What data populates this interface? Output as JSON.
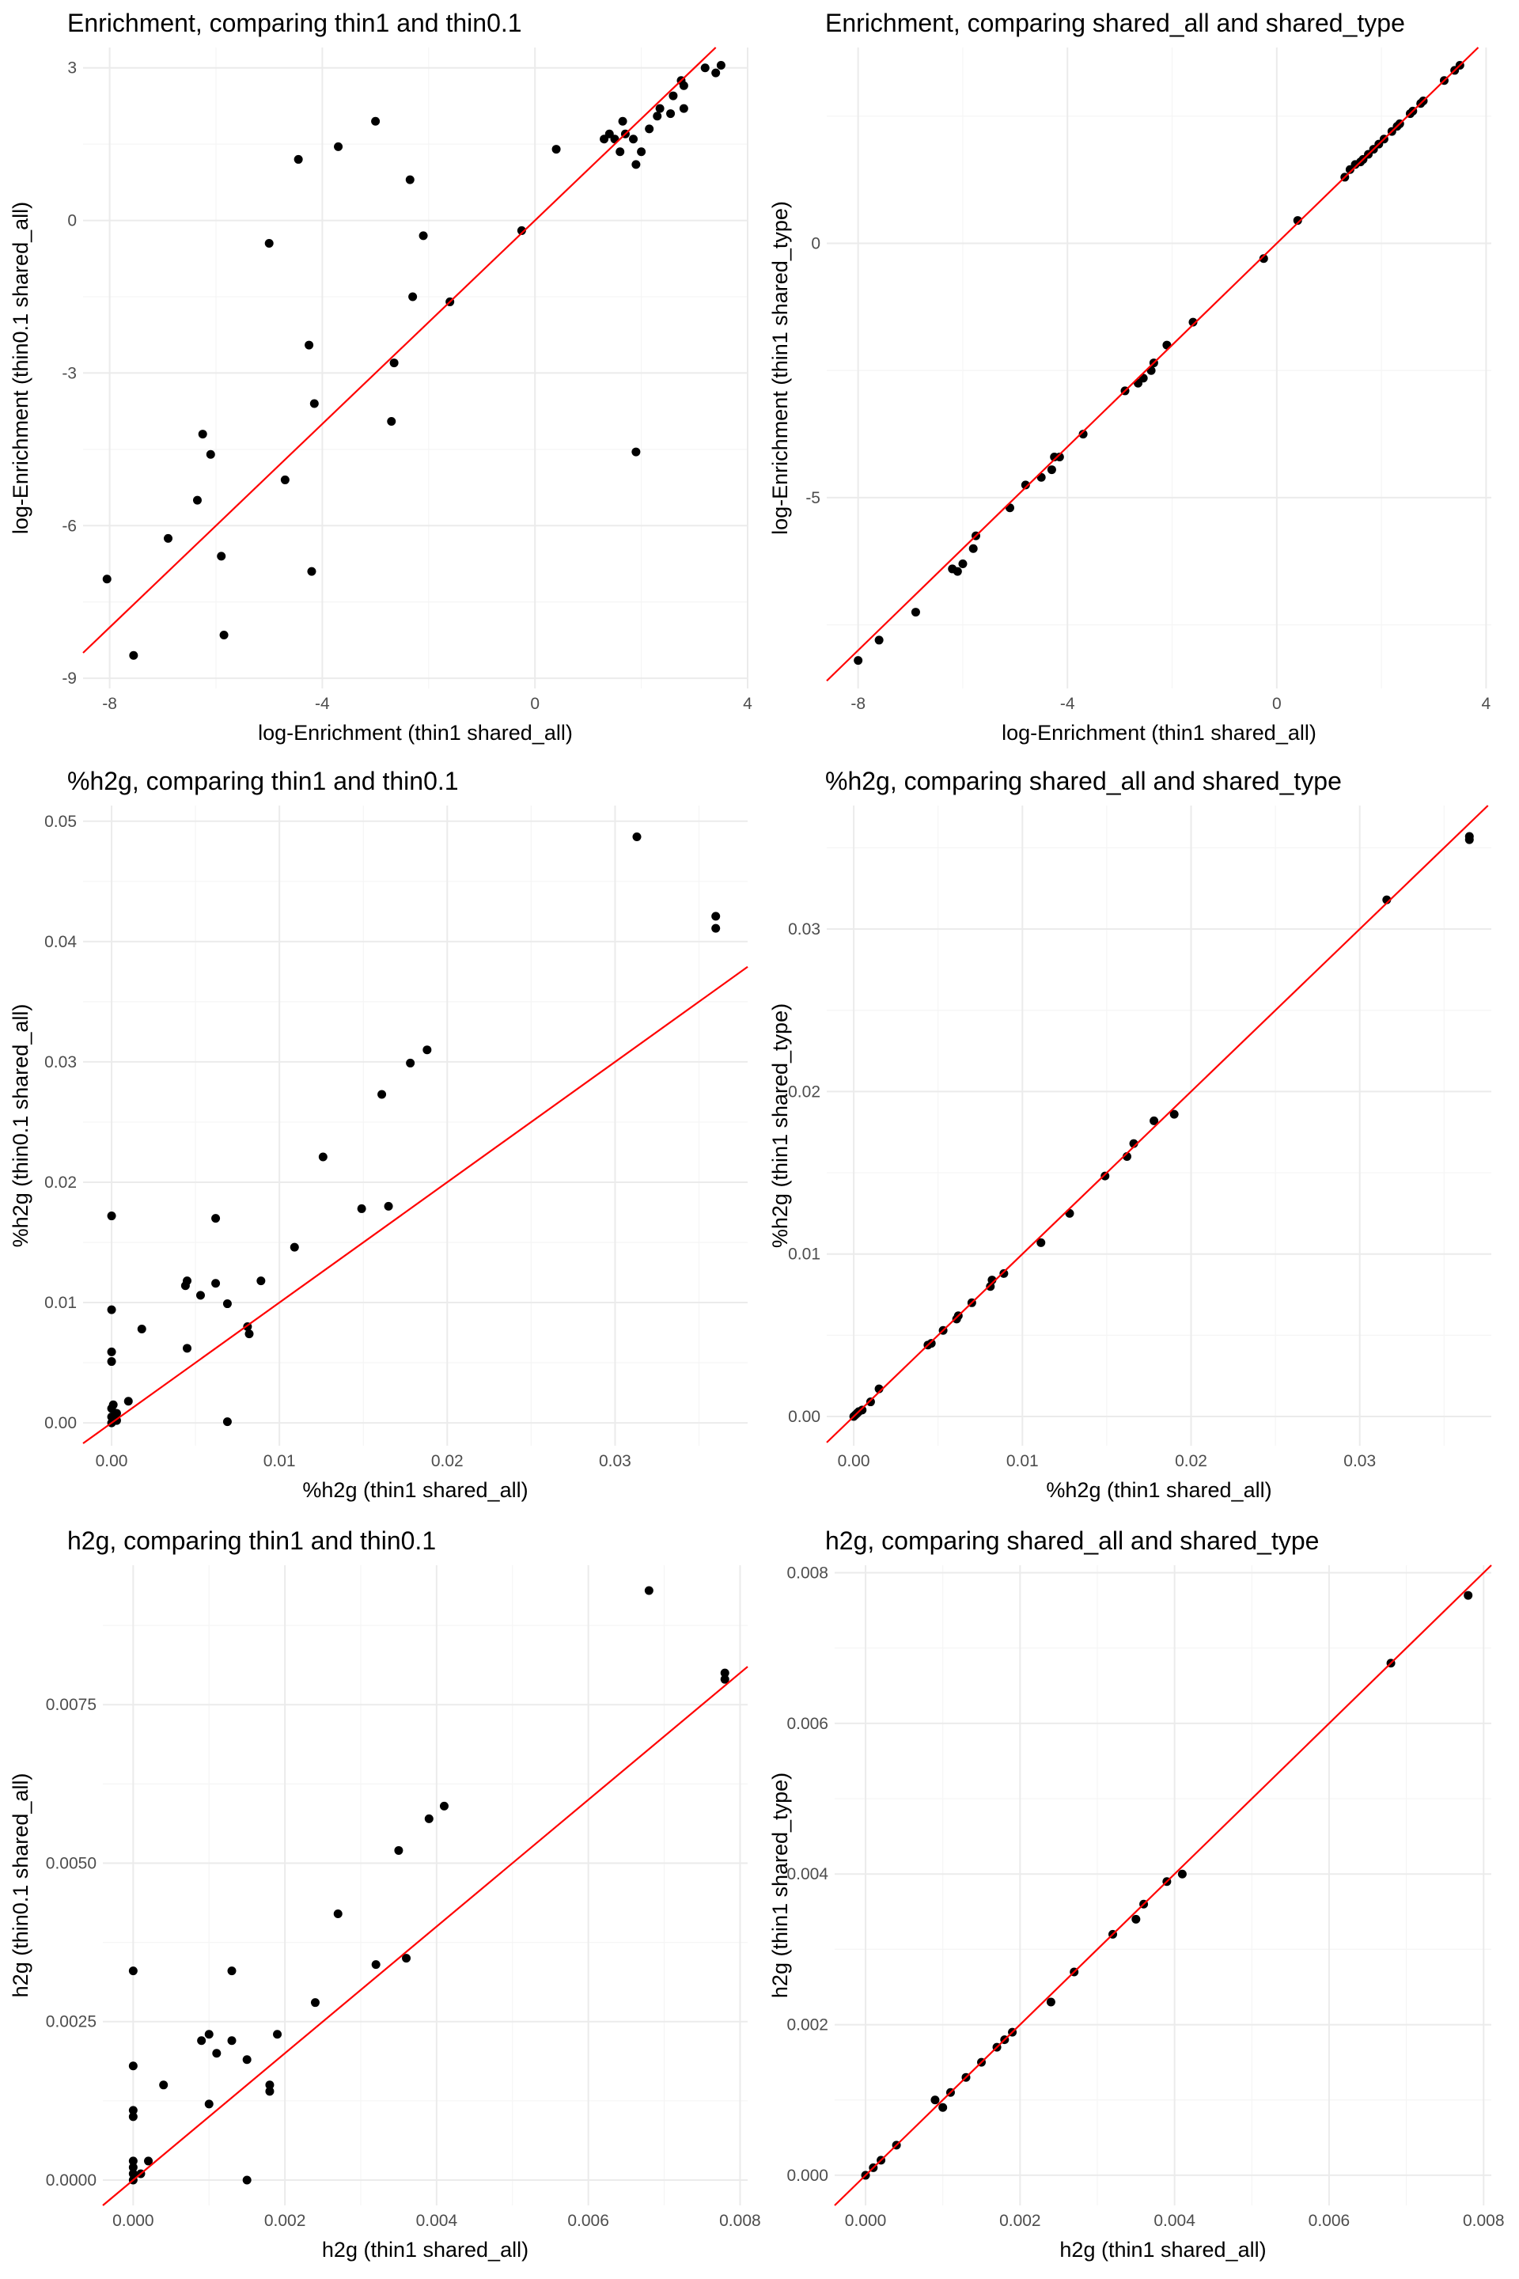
{
  "figure": {
    "rows": 3,
    "cols": 2
  },
  "colors": {
    "points": "#000000",
    "identity_line": "#ff0000",
    "grid_major": "#ebebeb",
    "grid_minor": "#f5f5f5",
    "background": "#ffffff"
  },
  "chart_data": [
    {
      "type": "scatter",
      "title": "Enrichment, comparing thin1 and thin0.1",
      "xlabel": "log-Enrichment (thin1 shared_all)",
      "ylabel": "log-Enrichment (thin0.1 shared_all)",
      "xlim": [
        -8.5,
        4.0
      ],
      "ylim": [
        -9.2,
        3.4
      ],
      "xticks": [
        -8,
        -4,
        0,
        4
      ],
      "xtick_labels": [
        "-8",
        "-4",
        "0",
        "4"
      ],
      "yticks": [
        -9,
        -6,
        -3,
        0,
        3
      ],
      "ytick_labels": [
        "-9",
        "-6",
        "-3",
        "0",
        "3"
      ],
      "reference_line": {
        "slope": 1,
        "intercept": 0
      },
      "points": [
        [
          -8.05,
          -7.05
        ],
        [
          -7.55,
          -8.55
        ],
        [
          -6.9,
          -6.25
        ],
        [
          -6.35,
          -5.5
        ],
        [
          -6.25,
          -4.2
        ],
        [
          -6.1,
          -4.6
        ],
        [
          -5.9,
          -6.6
        ],
        [
          -5.85,
          -8.15
        ],
        [
          -5.0,
          -0.45
        ],
        [
          -4.7,
          -5.1
        ],
        [
          -4.45,
          1.2
        ],
        [
          -4.25,
          -2.45
        ],
        [
          -4.2,
          -6.9
        ],
        [
          -4.15,
          -3.6
        ],
        [
          -3.7,
          1.45
        ],
        [
          -3.0,
          1.95
        ],
        [
          -2.7,
          -3.95
        ],
        [
          -2.65,
          -2.8
        ],
        [
          -2.35,
          0.8
        ],
        [
          -2.3,
          -1.5
        ],
        [
          -2.1,
          -0.3
        ],
        [
          -1.6,
          -1.6
        ],
        [
          -0.25,
          -0.2
        ],
        [
          0.4,
          1.4
        ],
        [
          1.3,
          1.6
        ],
        [
          1.4,
          1.7
        ],
        [
          1.5,
          1.6
        ],
        [
          1.6,
          1.35
        ],
        [
          1.65,
          1.95
        ],
        [
          1.7,
          1.7
        ],
        [
          1.85,
          1.6
        ],
        [
          1.9,
          1.1
        ],
        [
          1.9,
          -4.55
        ],
        [
          2.0,
          1.35
        ],
        [
          2.15,
          1.8
        ],
        [
          2.3,
          2.05
        ],
        [
          2.35,
          2.2
        ],
        [
          2.55,
          2.1
        ],
        [
          2.6,
          2.45
        ],
        [
          2.75,
          2.75
        ],
        [
          2.8,
          2.65
        ],
        [
          2.8,
          2.2
        ],
        [
          3.2,
          3.0
        ],
        [
          3.4,
          2.9
        ],
        [
          3.5,
          3.05
        ]
      ]
    },
    {
      "type": "scatter",
      "title": "Enrichment, comparing shared_all and shared_type",
      "xlabel": "log-Enrichment (thin1 shared_all)",
      "ylabel": "log-Enrichment (thin1 shared_type)",
      "xlim": [
        -8.6,
        4.1
      ],
      "ylim": [
        -8.75,
        3.85
      ],
      "xticks": [
        -8,
        -4,
        0,
        4
      ],
      "xtick_labels": [
        "-8",
        "-4",
        "0",
        "4"
      ],
      "yticks": [
        -5,
        0
      ],
      "ytick_labels": [
        "-5",
        "0"
      ],
      "reference_line": {
        "slope": 1,
        "intercept": 0
      },
      "points": [
        [
          -8.0,
          -8.2
        ],
        [
          -7.6,
          -7.8
        ],
        [
          -6.9,
          -7.25
        ],
        [
          -6.2,
          -6.4
        ],
        [
          -6.1,
          -6.45
        ],
        [
          -6.0,
          -6.3
        ],
        [
          -5.8,
          -6.0
        ],
        [
          -5.75,
          -5.75
        ],
        [
          -5.1,
          -5.2
        ],
        [
          -4.8,
          -4.75
        ],
        [
          -4.5,
          -4.6
        ],
        [
          -4.3,
          -4.45
        ],
        [
          -4.25,
          -4.2
        ],
        [
          -4.15,
          -4.2
        ],
        [
          -3.7,
          -3.75
        ],
        [
          -2.9,
          -2.9
        ],
        [
          -2.65,
          -2.75
        ],
        [
          -2.55,
          -2.65
        ],
        [
          -2.4,
          -2.5
        ],
        [
          -2.35,
          -2.35
        ],
        [
          -2.1,
          -2.0
        ],
        [
          -1.6,
          -1.55
        ],
        [
          -0.25,
          -0.3
        ],
        [
          0.4,
          0.45
        ],
        [
          1.3,
          1.3
        ],
        [
          1.4,
          1.45
        ],
        [
          1.5,
          1.55
        ],
        [
          1.6,
          1.6
        ],
        [
          1.65,
          1.65
        ],
        [
          1.75,
          1.75
        ],
        [
          1.85,
          1.85
        ],
        [
          1.95,
          1.95
        ],
        [
          2.05,
          2.05
        ],
        [
          2.2,
          2.2
        ],
        [
          2.3,
          2.3
        ],
        [
          2.35,
          2.35
        ],
        [
          2.55,
          2.55
        ],
        [
          2.6,
          2.6
        ],
        [
          2.75,
          2.75
        ],
        [
          2.8,
          2.8
        ],
        [
          3.2,
          3.2
        ],
        [
          3.4,
          3.4
        ],
        [
          3.5,
          3.5
        ]
      ]
    },
    {
      "type": "scatter",
      "title": "%h2g, comparing thin1 and thin0.1",
      "xlabel": "%h2g (thin1 shared_all)",
      "ylabel": "%h2g (thin0.1 shared_all)",
      "xlim": [
        -0.0017,
        0.0379
      ],
      "ylim": [
        -0.0019,
        0.0513
      ],
      "xticks": [
        0.0,
        0.01,
        0.02,
        0.03
      ],
      "xtick_labels": [
        "0.00",
        "0.01",
        "0.02",
        "0.03"
      ],
      "yticks": [
        0.0,
        0.01,
        0.02,
        0.03,
        0.04,
        0.05
      ],
      "ytick_labels": [
        "0.00",
        "0.01",
        "0.02",
        "0.03",
        "0.04",
        "0.05"
      ],
      "reference_line": {
        "slope": 1,
        "intercept": 0
      },
      "points": [
        [
          0.0,
          0.0
        ],
        [
          0.0,
          0.0005
        ],
        [
          0.0,
          0.0012
        ],
        [
          0.0001,
          0.0015
        ],
        [
          0.0003,
          0.0008
        ],
        [
          0.0003,
          0.0002
        ],
        [
          0.0,
          0.0051
        ],
        [
          0.0,
          0.0059
        ],
        [
          0.0,
          0.0094
        ],
        [
          0.0,
          0.0172
        ],
        [
          0.001,
          0.0018
        ],
        [
          0.0018,
          0.0078
        ],
        [
          0.0044,
          0.0114
        ],
        [
          0.0045,
          0.0118
        ],
        [
          0.0045,
          0.0062
        ],
        [
          0.0053,
          0.0106
        ],
        [
          0.0062,
          0.017
        ],
        [
          0.0062,
          0.0116
        ],
        [
          0.0069,
          0.0099
        ],
        [
          0.0069,
          0.0001
        ],
        [
          0.0081,
          0.008
        ],
        [
          0.0082,
          0.0074
        ],
        [
          0.0089,
          0.0118
        ],
        [
          0.0109,
          0.0146
        ],
        [
          0.0126,
          0.0221
        ],
        [
          0.0149,
          0.0178
        ],
        [
          0.0161,
          0.0273
        ],
        [
          0.0165,
          0.018
        ],
        [
          0.0178,
          0.0299
        ],
        [
          0.0188,
          0.031
        ],
        [
          0.0313,
          0.0487
        ],
        [
          0.036,
          0.0421
        ],
        [
          0.036,
          0.0411
        ]
      ]
    },
    {
      "type": "scatter",
      "title": "%h2g, comparing shared_all and shared_type",
      "xlabel": "%h2g (thin1 shared_all)",
      "ylabel": "%h2g (thin1 shared_type)",
      "xlim": [
        -0.0016,
        0.0378
      ],
      "ylim": [
        -0.0018,
        0.0376
      ],
      "xticks": [
        0.0,
        0.01,
        0.02,
        0.03
      ],
      "xtick_labels": [
        "0.00",
        "0.01",
        "0.02",
        "0.03"
      ],
      "yticks": [
        0.0,
        0.01,
        0.02,
        0.03
      ],
      "ytick_labels": [
        "0.00",
        "0.01",
        "0.02",
        "0.03"
      ],
      "reference_line": {
        "slope": 1,
        "intercept": 0
      },
      "points": [
        [
          0.0,
          0.0
        ],
        [
          0.0001,
          0.0001
        ],
        [
          0.0002,
          0.0002
        ],
        [
          0.0003,
          0.0003
        ],
        [
          0.0005,
          0.0004
        ],
        [
          0.001,
          0.0009
        ],
        [
          0.0015,
          0.0017
        ],
        [
          0.0044,
          0.0044
        ],
        [
          0.0046,
          0.0045
        ],
        [
          0.0053,
          0.0053
        ],
        [
          0.0061,
          0.006
        ],
        [
          0.0062,
          0.0062
        ],
        [
          0.007,
          0.007
        ],
        [
          0.0081,
          0.008
        ],
        [
          0.0082,
          0.0084
        ],
        [
          0.0089,
          0.0088
        ],
        [
          0.0111,
          0.0107
        ],
        [
          0.0128,
          0.0125
        ],
        [
          0.0149,
          0.0148
        ],
        [
          0.0162,
          0.016
        ],
        [
          0.0166,
          0.0168
        ],
        [
          0.0178,
          0.0182
        ],
        [
          0.019,
          0.0186
        ],
        [
          0.0316,
          0.0318
        ],
        [
          0.0365,
          0.0357
        ],
        [
          0.0365,
          0.0355
        ]
      ]
    },
    {
      "type": "scatter",
      "title": "h2g, comparing thin1 and thin0.1",
      "xlabel": "h2g (thin1 shared_all)",
      "ylabel": "h2g (thin0.1 shared_all)",
      "xlim": [
        -0.0004,
        0.0081
      ],
      "ylim": [
        -0.0004,
        0.0097
      ],
      "xticks": [
        0.0,
        0.002,
        0.004,
        0.006,
        0.008
      ],
      "xtick_labels": [
        "0.000",
        "0.002",
        "0.004",
        "0.006",
        "0.008"
      ],
      "yticks": [
        0.0,
        0.0025,
        0.005,
        0.0075
      ],
      "ytick_labels": [
        "0.0000",
        "0.0025",
        "0.0050",
        "0.0075"
      ],
      "reference_line": {
        "slope": 1,
        "intercept": 0
      },
      "points": [
        [
          0.0,
          0.0
        ],
        [
          0.0,
          0.0001
        ],
        [
          0.0,
          0.0002
        ],
        [
          0.0,
          0.0003
        ],
        [
          0.0001,
          0.0001
        ],
        [
          0.0002,
          0.0003
        ],
        [
          0.0,
          0.001
        ],
        [
          0.0,
          0.0011
        ],
        [
          0.0,
          0.0018
        ],
        [
          0.0,
          0.0033
        ],
        [
          0.0004,
          0.0015
        ],
        [
          0.0009,
          0.0022
        ],
        [
          0.001,
          0.0023
        ],
        [
          0.001,
          0.0012
        ],
        [
          0.0011,
          0.002
        ],
        [
          0.0013,
          0.0033
        ],
        [
          0.0013,
          0.0022
        ],
        [
          0.0015,
          0.0019
        ],
        [
          0.0015,
          0.0
        ],
        [
          0.0018,
          0.0014
        ],
        [
          0.0018,
          0.0015
        ],
        [
          0.0019,
          0.0023
        ],
        [
          0.0024,
          0.0028
        ],
        [
          0.0027,
          0.0042
        ],
        [
          0.0032,
          0.0034
        ],
        [
          0.0035,
          0.0052
        ],
        [
          0.0036,
          0.0035
        ],
        [
          0.0039,
          0.0057
        ],
        [
          0.0041,
          0.0059
        ],
        [
          0.0068,
          0.0093
        ],
        [
          0.0078,
          0.008
        ],
        [
          0.0078,
          0.0079
        ]
      ]
    },
    {
      "type": "scatter",
      "title": "h2g, comparing shared_all and shared_type",
      "xlabel": "h2g (thin1 shared_all)",
      "ylabel": "h2g (thin1 shared_type)",
      "xlim": [
        -0.0004,
        0.0081
      ],
      "ylim": [
        -0.0004,
        0.0081
      ],
      "xticks": [
        0.0,
        0.002,
        0.004,
        0.006,
        0.008
      ],
      "xtick_labels": [
        "0.000",
        "0.002",
        "0.004",
        "0.006",
        "0.008"
      ],
      "yticks": [
        0.0,
        0.002,
        0.004,
        0.006,
        0.008
      ],
      "ytick_labels": [
        "0.000",
        "0.002",
        "0.004",
        "0.006",
        "0.008"
      ],
      "reference_line": {
        "slope": 1,
        "intercept": 0
      },
      "points": [
        [
          0.0,
          0.0
        ],
        [
          0.0001,
          0.0001
        ],
        [
          0.0002,
          0.0002
        ],
        [
          0.0004,
          0.0004
        ],
        [
          0.0009,
          0.001
        ],
        [
          0.001,
          0.0009
        ],
        [
          0.0011,
          0.0011
        ],
        [
          0.0013,
          0.0013
        ],
        [
          0.0015,
          0.0015
        ],
        [
          0.0017,
          0.0017
        ],
        [
          0.0018,
          0.0018
        ],
        [
          0.0019,
          0.0019
        ],
        [
          0.0024,
          0.0023
        ],
        [
          0.0027,
          0.0027
        ],
        [
          0.0032,
          0.0032
        ],
        [
          0.0035,
          0.0034
        ],
        [
          0.0036,
          0.0036
        ],
        [
          0.0039,
          0.0039
        ],
        [
          0.0041,
          0.004
        ],
        [
          0.0068,
          0.0068
        ],
        [
          0.0078,
          0.0077
        ]
      ]
    }
  ]
}
